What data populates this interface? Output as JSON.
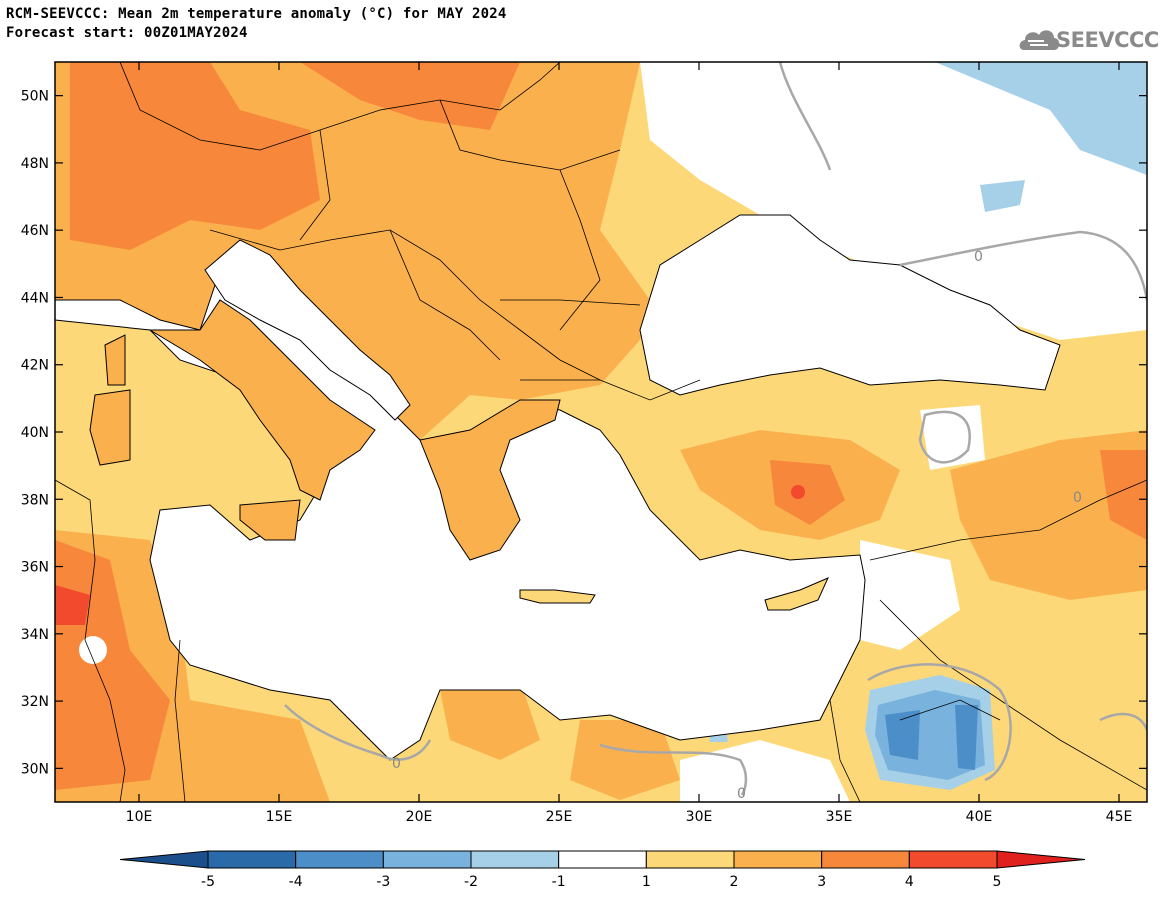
{
  "title": {
    "line1": "RCM-SEEVCCC: Mean 2m temperature anomaly (°C) for MAY 2024",
    "line2": "Forecast start: 00Z01MAY2024"
  },
  "logo": {
    "text": "SEEVCCC",
    "icon": "cloud-icon"
  },
  "map": {
    "lon_range": [
      7,
      46
    ],
    "lat_range": [
      29,
      51
    ],
    "lat_labels": [
      "50N",
      "48N",
      "46N",
      "44N",
      "42N",
      "40N",
      "38N",
      "36N",
      "34N",
      "32N",
      "30N"
    ],
    "lon_labels": [
      "10E",
      "15E",
      "20E",
      "25E",
      "30E",
      "35E",
      "40E",
      "45E"
    ],
    "contour_label": "0"
  },
  "colorbar": {
    "labels": [
      "-5",
      "-4",
      "-3",
      "-2",
      "-1",
      "1",
      "2",
      "3",
      "4",
      "5"
    ],
    "colors": [
      "#1b4f8c",
      "#2a6aa8",
      "#4b8ec8",
      "#79b2dd",
      "#a6cfe8",
      "#ffffff",
      "#fdd878",
      "#fbb04e",
      "#f7873a",
      "#f14a2c",
      "#e0201c"
    ]
  },
  "anomaly_colors": {
    "c1_2": "#fdd878",
    "c2_3": "#fbb04e",
    "c3_4": "#f7873a",
    "c4_5": "#f14a2c",
    "n1_2": "#a6cfe8",
    "n2_3": "#79b2dd",
    "n3_4": "#4b8ec8",
    "n4_5": "#2a6aa8"
  }
}
